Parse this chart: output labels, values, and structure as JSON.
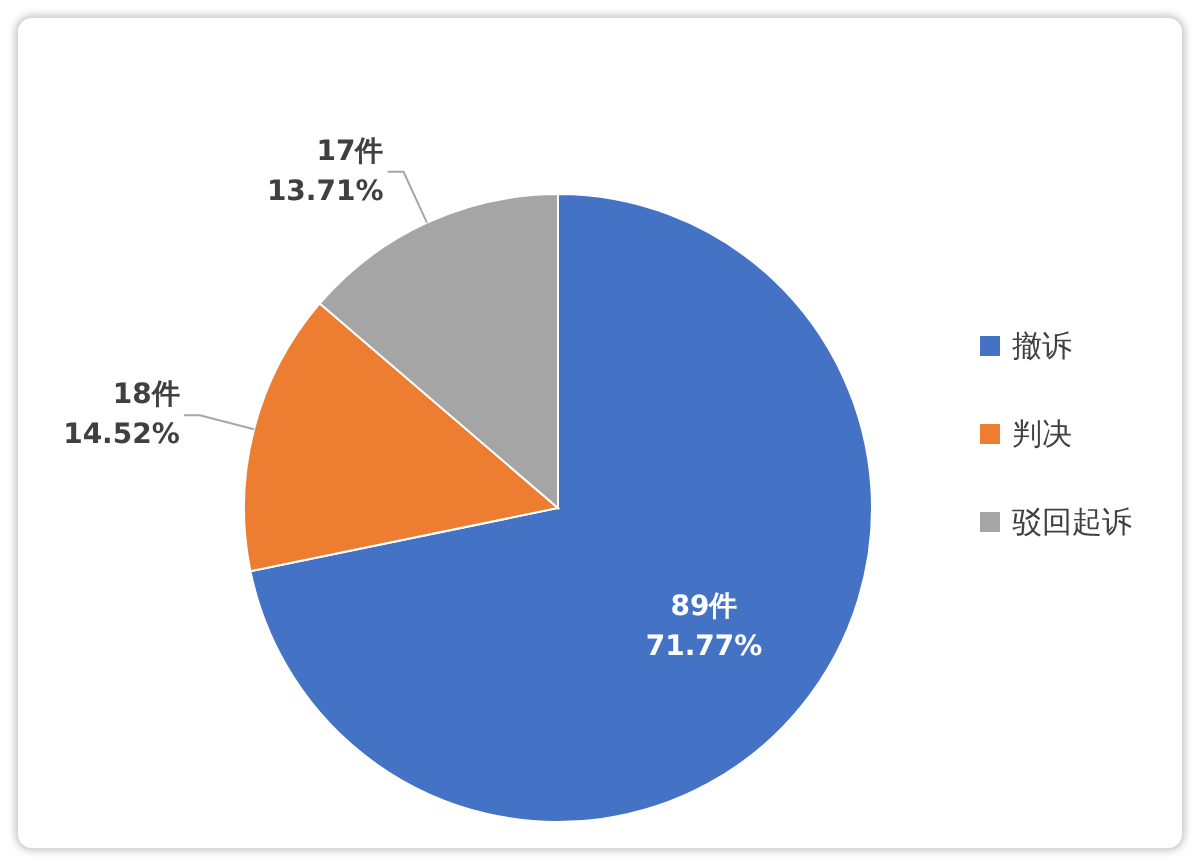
{
  "chart_data": {
    "type": "pie",
    "categories": [
      "撤诉",
      "判决",
      "驳回起诉"
    ],
    "values": [
      89,
      18,
      17
    ],
    "colors": [
      "#4472c4",
      "#ed7d31",
      "#a5a5a5"
    ],
    "value_labels": [
      "89件\n71.77%",
      "18件\n14.52%",
      "17件\n13.71%"
    ],
    "legend": "right"
  }
}
